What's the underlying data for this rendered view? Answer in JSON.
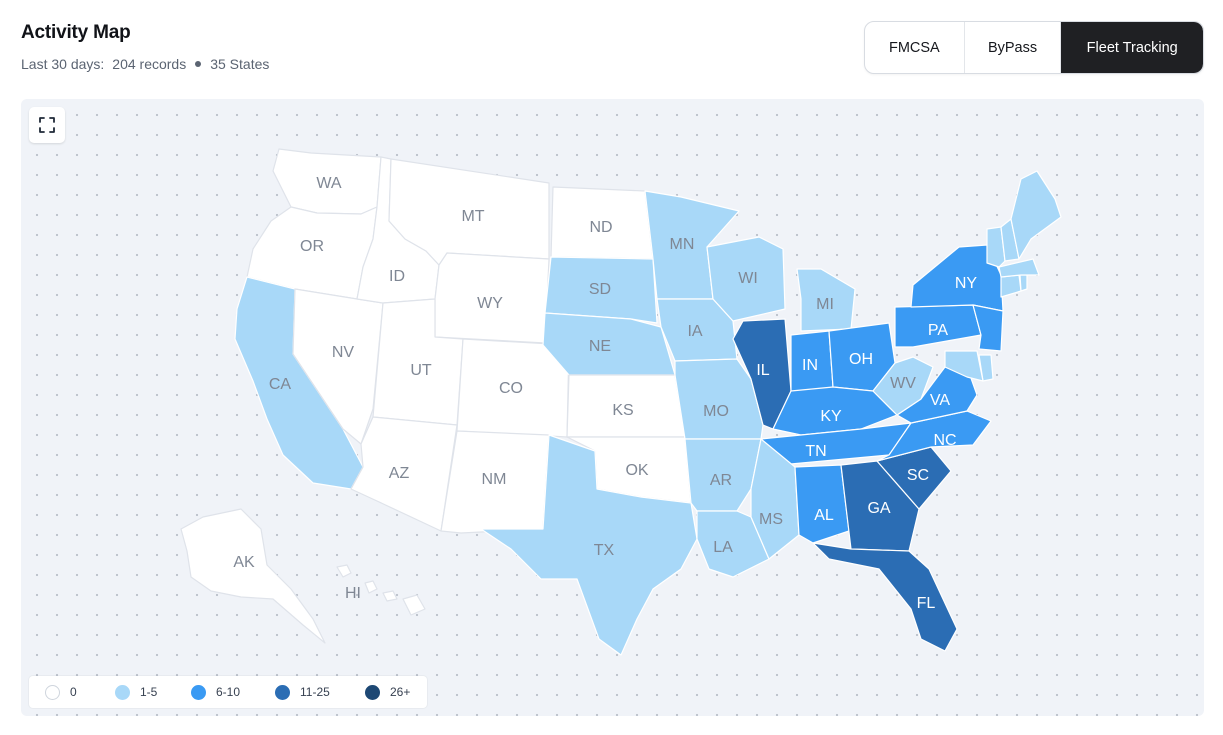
{
  "header": {
    "title": "Activity Map",
    "period_label": "Last 30 days:",
    "records": "204 records",
    "states": "35 States"
  },
  "tabs": [
    {
      "label": "FMCSA",
      "active": false
    },
    {
      "label": "ByPass",
      "active": false
    },
    {
      "label": "Fleet Tracking",
      "active": true
    }
  ],
  "map": {
    "fullscreen_icon": "fullscreen-icon",
    "colors": {
      "0": "#ffffff",
      "1": "#a8d8f8",
      "2": "#3a9af3",
      "3": "#2b6db4",
      "4": "#1d4874"
    },
    "label_colors": {
      "dark": "#7f8794",
      "light": "#ffffff"
    },
    "states": [
      {
        "code": "WA",
        "level": 0
      },
      {
        "code": "OR",
        "level": 0
      },
      {
        "code": "CA",
        "level": 1
      },
      {
        "code": "NV",
        "level": 0
      },
      {
        "code": "ID",
        "level": 0
      },
      {
        "code": "MT",
        "level": 0
      },
      {
        "code": "WY",
        "level": 0
      },
      {
        "code": "UT",
        "level": 0
      },
      {
        "code": "AZ",
        "level": 0
      },
      {
        "code": "CO",
        "level": 0
      },
      {
        "code": "NM",
        "level": 0
      },
      {
        "code": "ND",
        "level": 0
      },
      {
        "code": "SD",
        "level": 1
      },
      {
        "code": "NE",
        "level": 1
      },
      {
        "code": "KS",
        "level": 0
      },
      {
        "code": "OK",
        "level": 0
      },
      {
        "code": "TX",
        "level": 1
      },
      {
        "code": "MN",
        "level": 1
      },
      {
        "code": "IA",
        "level": 1
      },
      {
        "code": "MO",
        "level": 1
      },
      {
        "code": "AR",
        "level": 1
      },
      {
        "code": "LA",
        "level": 1
      },
      {
        "code": "WI",
        "level": 1
      },
      {
        "code": "IL",
        "level": 3
      },
      {
        "code": "MI",
        "level": 1
      },
      {
        "code": "IN",
        "level": 2
      },
      {
        "code": "OH",
        "level": 2
      },
      {
        "code": "KY",
        "level": 2
      },
      {
        "code": "TN",
        "level": 2
      },
      {
        "code": "MS",
        "level": 1
      },
      {
        "code": "AL",
        "level": 2
      },
      {
        "code": "GA",
        "level": 3
      },
      {
        "code": "FL",
        "level": 3
      },
      {
        "code": "SC",
        "level": 3
      },
      {
        "code": "NC",
        "level": 2
      },
      {
        "code": "VA",
        "level": 2
      },
      {
        "code": "WV",
        "level": 1
      },
      {
        "code": "PA",
        "level": 2
      },
      {
        "code": "NY",
        "level": 2
      },
      {
        "code": "NJ",
        "level": 2
      },
      {
        "code": "DE",
        "level": 1
      },
      {
        "code": "MD",
        "level": 1
      },
      {
        "code": "CT",
        "level": 1
      },
      {
        "code": "RI",
        "level": 1
      },
      {
        "code": "MA",
        "level": 1
      },
      {
        "code": "VT",
        "level": 1
      },
      {
        "code": "NH",
        "level": 1
      },
      {
        "code": "ME",
        "level": 1
      },
      {
        "code": "AK",
        "level": 0
      },
      {
        "code": "HI",
        "level": 0
      }
    ]
  },
  "legend": [
    {
      "label": "0",
      "level": 0
    },
    {
      "label": "1-5",
      "level": 1
    },
    {
      "label": "6-10",
      "level": 2
    },
    {
      "label": "11-25",
      "level": 3
    },
    {
      "label": "26+",
      "level": 4
    }
  ]
}
